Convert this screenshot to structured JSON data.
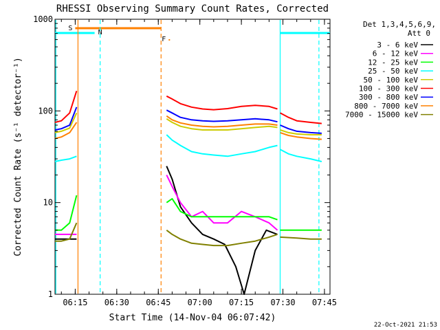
{
  "chart_data": {
    "type": "line",
    "title": "RHESSI Observing Summary Count Rates, Corrected",
    "xlabel": "Start Time (14-Nov-04 06:07:42)",
    "ylabel": "Corrected Count Rate (s⁻¹ detector⁻¹)",
    "yscale": "log",
    "ylim": [
      1,
      1000
    ],
    "xlim": [
      "06:07:42",
      "07:47:00"
    ],
    "x_ticks": [
      "06:15",
      "06:30",
      "06:45",
      "07:00",
      "07:15",
      "07:30",
      "07:45"
    ],
    "y_ticks": [
      "1",
      "10",
      "100",
      "1000"
    ],
    "legend_header": [
      "Det 1,3,4,5,6,9,",
      "Att 0"
    ],
    "legend_position": "right",
    "footer_date": "22-Oct-2021 21:53",
    "flags": {
      "saa": {
        "label": "S",
        "start": "06:15",
        "end": "06:46",
        "color": "#ff8000"
      },
      "night": {
        "label": "N",
        "intervals": [
          [
            "06:07:42",
            "06:22"
          ],
          [
            "07:29",
            "07:47"
          ]
        ],
        "color": "#00ffff"
      },
      "flare": {
        "label": "F",
        "x": "06:47",
        "color": "#ff8000"
      }
    },
    "vlines": [
      {
        "x": "06:08",
        "color": "#00ffff",
        "style": "solid"
      },
      {
        "x": "06:16",
        "color": "#ff8000",
        "style": "solid"
      },
      {
        "x": "06:24",
        "color": "#00ffff",
        "style": "dashed"
      },
      {
        "x": "06:46",
        "color": "#ff8000",
        "style": "dashed"
      },
      {
        "x": "07:29",
        "color": "#00ffff",
        "style": "solid"
      },
      {
        "x": "07:43",
        "color": "#00ffff",
        "style": "dashed"
      }
    ],
    "series": [
      {
        "name": "3 - 6 keV",
        "color": "#000000",
        "segments": [
          {
            "x": [
              "06:07:42",
              "06:14",
              "06:15:30"
            ],
            "y": [
              4,
              4,
              4
            ]
          },
          {
            "x": [
              "06:48",
              "06:50",
              "06:53",
              "06:57",
              "07:01",
              "07:05",
              "07:09",
              "07:13",
              "07:16",
              "07:20",
              "07:24",
              "07:28"
            ],
            "y": [
              25,
              18,
              9,
              6,
              4.5,
              4,
              3.5,
              2,
              1,
              3,
              5,
              4.5
            ]
          }
        ]
      },
      {
        "name": "6 - 12 keV",
        "color": "#ff00ff",
        "segments": [
          {
            "x": [
              "06:07:42",
              "06:14",
              "06:15:30"
            ],
            "y": [
              4.5,
              4.5,
              4.5
            ]
          },
          {
            "x": [
              "06:48",
              "06:50",
              "06:53",
              "06:57",
              "07:01",
              "07:05",
              "07:10",
              "07:15",
              "07:20",
              "07:25",
              "07:28"
            ],
            "y": [
              20,
              15,
              10,
              7,
              8,
              6,
              6,
              8,
              7,
              6,
              5
            ]
          }
        ]
      },
      {
        "name": "12 - 25 keV",
        "color": "#00ff00",
        "segments": [
          {
            "x": [
              "06:07:42",
              "06:10",
              "06:13",
              "06:15:30"
            ],
            "y": [
              5,
              5,
              6,
              12
            ]
          },
          {
            "x": [
              "06:48",
              "06:50",
              "06:53",
              "06:57",
              "07:01",
              "07:05",
              "07:10",
              "07:15",
              "07:20",
              "07:25",
              "07:28"
            ],
            "y": [
              10,
              11,
              8,
              7,
              7,
              7,
              7,
              7,
              7,
              7,
              6.5
            ]
          },
          {
            "x": [
              "07:29",
              "07:35",
              "07:40",
              "07:44"
            ],
            "y": [
              5,
              5,
              5,
              5
            ]
          }
        ]
      },
      {
        "name": "25 - 50 keV",
        "color": "#00ffff",
        "segments": [
          {
            "x": [
              "06:07:42",
              "06:10",
              "06:13",
              "06:15:30"
            ],
            "y": [
              28,
              29,
              30,
              32
            ]
          },
          {
            "x": [
              "06:48",
              "06:50",
              "06:53",
              "06:57",
              "07:01",
              "07:05",
              "07:10",
              "07:15",
              "07:20",
              "07:25",
              "07:28"
            ],
            "y": [
              55,
              48,
              42,
              36,
              34,
              33,
              32,
              34,
              36,
              40,
              42
            ]
          },
          {
            "x": [
              "07:29",
              "07:32",
              "07:35",
              "07:40",
              "07:44"
            ],
            "y": [
              38,
              34,
              32,
              30,
              28
            ]
          }
        ]
      },
      {
        "name": "50 - 100 keV",
        "color": "#cccc00",
        "segments": [
          {
            "x": [
              "06:07:42",
              "06:10",
              "06:13",
              "06:15:30"
            ],
            "y": [
              58,
              60,
              65,
              95
            ]
          },
          {
            "x": [
              "06:48",
              "06:50",
              "06:53",
              "06:57",
              "07:01",
              "07:05",
              "07:10",
              "07:15",
              "07:20",
              "07:25",
              "07:28"
            ],
            "y": [
              82,
              75,
              68,
              64,
              62,
              62,
              62,
              64,
              66,
              68,
              66
            ]
          },
          {
            "x": [
              "07:29",
              "07:32",
              "07:35",
              "07:40",
              "07:44"
            ],
            "y": [
              62,
              58,
              56,
              55,
              55
            ]
          }
        ]
      },
      {
        "name": "100 - 300 keV",
        "color": "#ff0000",
        "segments": [
          {
            "x": [
              "06:07:42",
              "06:10",
              "06:13",
              "06:15:30"
            ],
            "y": [
              75,
              78,
              95,
              165
            ]
          },
          {
            "x": [
              "06:48",
              "06:50",
              "06:53",
              "06:57",
              "07:01",
              "07:05",
              "07:10",
              "07:15",
              "07:20",
              "07:25",
              "07:28"
            ],
            "y": [
              145,
              135,
              120,
              110,
              105,
              103,
              106,
              112,
              115,
              112,
              105
            ]
          },
          {
            "x": [
              "07:29",
              "07:32",
              "07:35",
              "07:40",
              "07:44"
            ],
            "y": [
              95,
              85,
              78,
              75,
              73
            ]
          }
        ]
      },
      {
        "name": "300 - 800 keV",
        "color": "#0000ff",
        "segments": [
          {
            "x": [
              "06:07:42",
              "06:10",
              "06:13",
              "06:15:30"
            ],
            "y": [
              62,
              64,
              70,
              110
            ]
          },
          {
            "x": [
              "06:48",
              "06:50",
              "06:53",
              "06:57",
              "07:01",
              "07:05",
              "07:10",
              "07:15",
              "07:20",
              "07:25",
              "07:28"
            ],
            "y": [
              102,
              95,
              85,
              80,
              78,
              77,
              78,
              80,
              82,
              80,
              76
            ]
          },
          {
            "x": [
              "07:29",
              "07:32",
              "07:35",
              "07:40",
              "07:44"
            ],
            "y": [
              70,
              64,
              60,
              58,
              57
            ]
          }
        ]
      },
      {
        "name": "800 - 7000 keV",
        "color": "#ff8000",
        "segments": [
          {
            "x": [
              "06:07:42",
              "06:10",
              "06:13",
              "06:15:30"
            ],
            "y": [
              50,
              52,
              58,
              75
            ]
          },
          {
            "x": [
              "06:48",
              "06:50",
              "06:53",
              "06:57",
              "07:01",
              "07:05",
              "07:10",
              "07:15",
              "07:20",
              "07:25",
              "07:28"
            ],
            "y": [
              88,
              80,
              74,
              70,
              68,
              67,
              68,
              70,
              72,
              72,
              70
            ]
          },
          {
            "x": [
              "07:29",
              "07:32",
              "07:35",
              "07:40",
              "07:44"
            ],
            "y": [
              58,
              54,
              52,
              50,
              49
            ]
          }
        ]
      },
      {
        "name": "7000 - 15000 keV",
        "color": "#808000",
        "segments": [
          {
            "x": [
              "06:07:42",
              "06:10",
              "06:13",
              "06:15:30"
            ],
            "y": [
              3.8,
              3.8,
              4,
              6
            ]
          },
          {
            "x": [
              "06:48",
              "06:50",
              "06:53",
              "06:57",
              "07:01",
              "07:05",
              "07:10",
              "07:15",
              "07:20",
              "07:25",
              "07:28"
            ],
            "y": [
              5,
              4.5,
              4,
              3.6,
              3.5,
              3.4,
              3.4,
              3.6,
              3.8,
              4.2,
              4.5
            ]
          },
          {
            "x": [
              "07:29",
              "07:35",
              "07:40",
              "07:44"
            ],
            "y": [
              4.2,
              4.1,
              4,
              4
            ]
          }
        ]
      }
    ]
  }
}
